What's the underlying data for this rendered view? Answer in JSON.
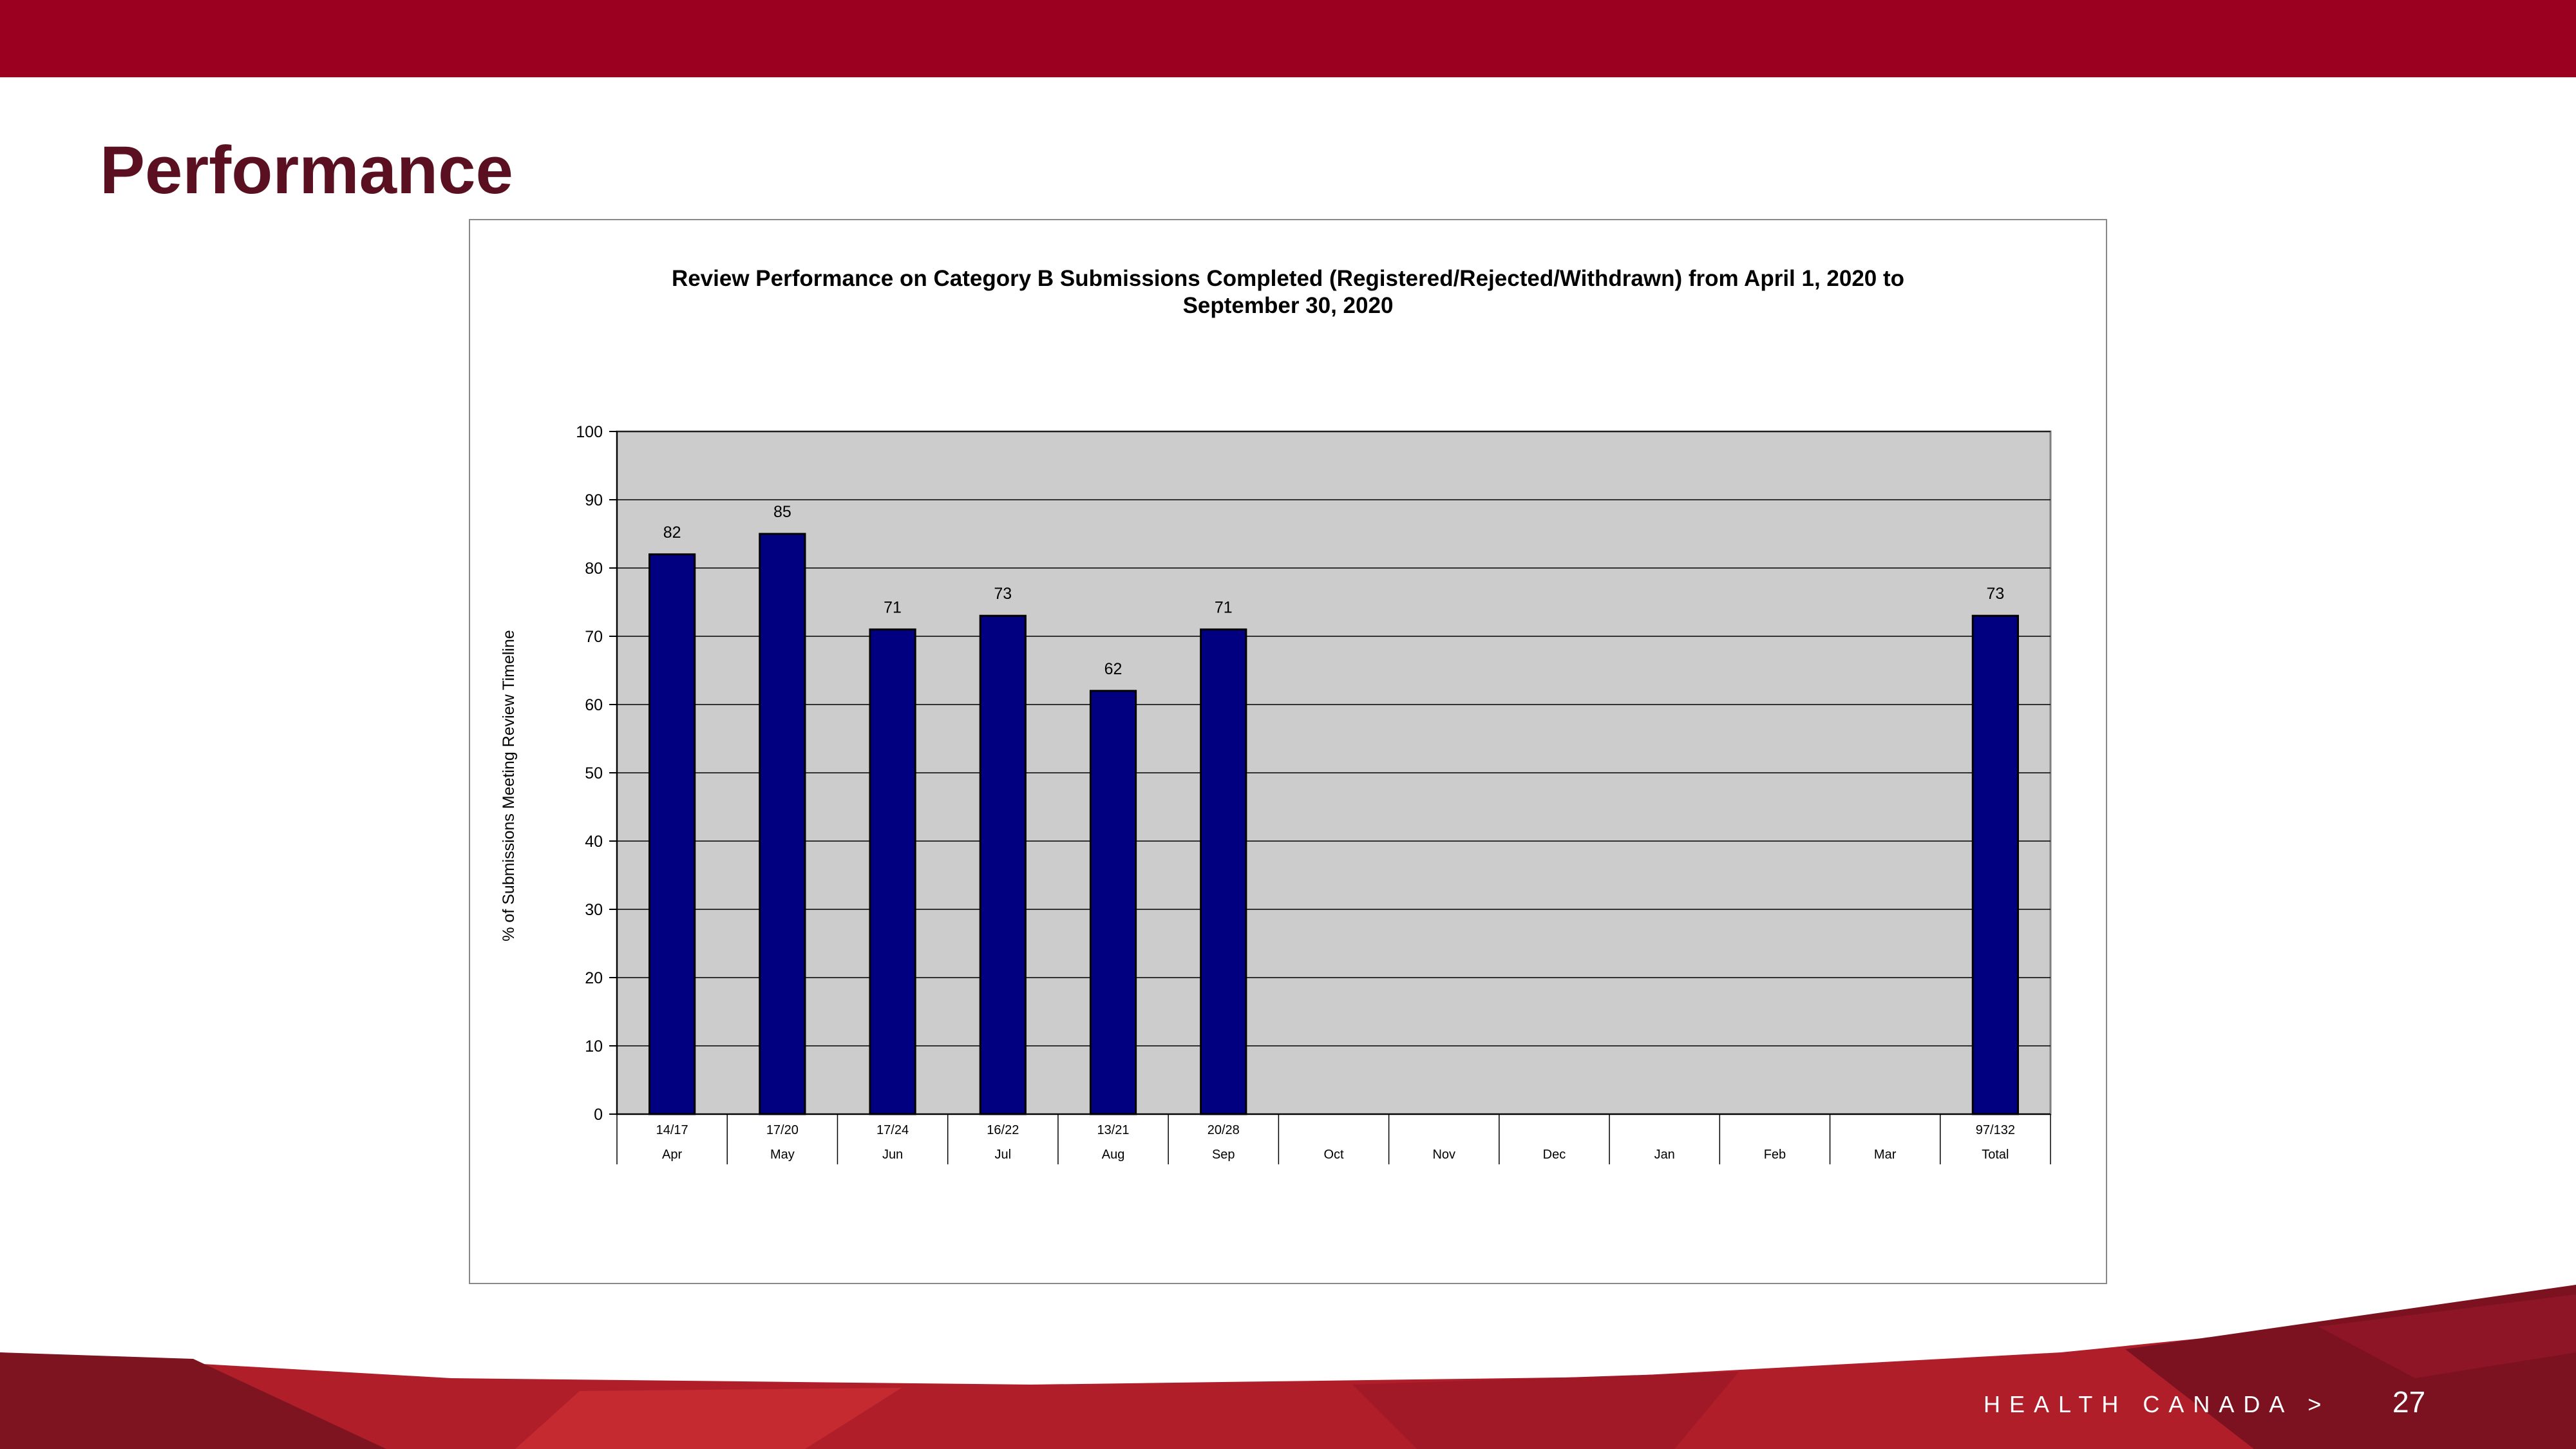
{
  "slide": {
    "title": "Performance",
    "footer_brand": "HEALTH CANADA >",
    "page_number": "27"
  },
  "colors": {
    "brand_red": "#9b0020",
    "title_color": "#5a1020",
    "bar_fill": "#000080",
    "plot_background": "#cccccc"
  },
  "chart_data": {
    "type": "bar",
    "title": "Review Performance on Category B Submissions Completed (Registered/Rejected/Withdrawn) from April 1, 2020 to September 30, 2020",
    "title_lines": [
      "Review Performance on Category B Submissions Completed (Registered/Rejected/Withdrawn) from April 1, 2020 to",
      "September 30, 2020"
    ],
    "ylabel": "% of Submissions Meeting Review Timeline",
    "xlabel": "",
    "ylim": [
      0,
      100
    ],
    "yticks": [
      0,
      10,
      20,
      30,
      40,
      50,
      60,
      70,
      80,
      90,
      100
    ],
    "grid": true,
    "categories": [
      "Apr",
      "May",
      "Jun",
      "Jul",
      "Aug",
      "Sep",
      "Oct",
      "Nov",
      "Dec",
      "Jan",
      "Feb",
      "Mar",
      "Total"
    ],
    "counts": [
      "14/17",
      "17/20",
      "17/24",
      "16/22",
      "13/21",
      "20/28",
      "",
      "",
      "",
      "",
      "",
      "",
      "97/132"
    ],
    "values": [
      82,
      85,
      71,
      73,
      62,
      71,
      null,
      null,
      null,
      null,
      null,
      null,
      73
    ]
  }
}
